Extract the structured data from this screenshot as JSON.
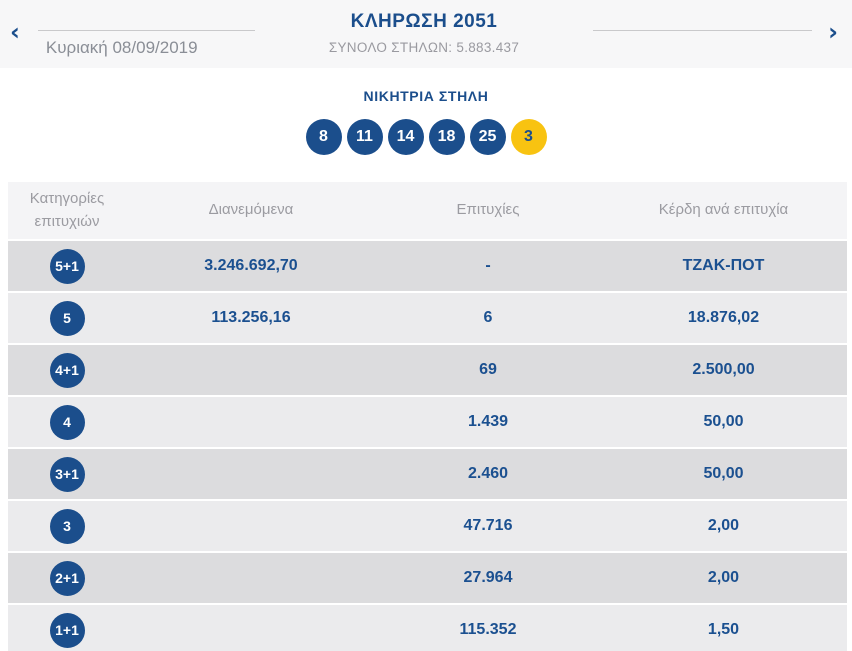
{
  "header": {
    "title": "ΚΛΗΡΩΣΗ 2051",
    "subtitle": "ΣΥΝΟΛΟ ΣΤΗΛΩΝ: 5.883.437",
    "date": "Κυριακή 08/09/2019",
    "prev_icon": "‹",
    "next_icon": "›"
  },
  "winning": {
    "title": "ΝΙΚΗΤΡΙΑ ΣΤΗΛΗ",
    "numbers": [
      "8",
      "11",
      "14",
      "18",
      "25"
    ],
    "joker_number": "3"
  },
  "table": {
    "columns": {
      "category": "Κατηγορίες επιτυχιών",
      "distributed": "Διανεμόμενα",
      "wins": "Επιτυχίες",
      "per_win": "Κέρδη ανά επιτυχία"
    },
    "rows": [
      {
        "category": "5+1",
        "distributed": "3.246.692,70",
        "wins": "-",
        "per_win": "ΤΖΑΚ-ΠΟΤ"
      },
      {
        "category": "5",
        "distributed": "113.256,16",
        "wins": "6",
        "per_win": "18.876,02"
      },
      {
        "category": "4+1",
        "distributed": "",
        "wins": "69",
        "per_win": "2.500,00"
      },
      {
        "category": "4",
        "distributed": "",
        "wins": "1.439",
        "per_win": "50,00"
      },
      {
        "category": "3+1",
        "distributed": "",
        "wins": "2.460",
        "per_win": "50,00"
      },
      {
        "category": "3",
        "distributed": "",
        "wins": "47.716",
        "per_win": "2,00"
      },
      {
        "category": "2+1",
        "distributed": "",
        "wins": "27.964",
        "per_win": "2,00"
      },
      {
        "category": "1+1",
        "distributed": "",
        "wins": "115.352",
        "per_win": "1,50"
      }
    ]
  },
  "colors": {
    "primary_blue": "#1b4e8c",
    "value_blue": "#1b5090",
    "joker_yellow": "#f8c311",
    "top_band_bg": "#f7f7f8",
    "header_bg": "#f4f4f6",
    "row_light": "#ebebed",
    "row_dark": "#dcdcde",
    "muted_gray": "#9b9ba1"
  }
}
